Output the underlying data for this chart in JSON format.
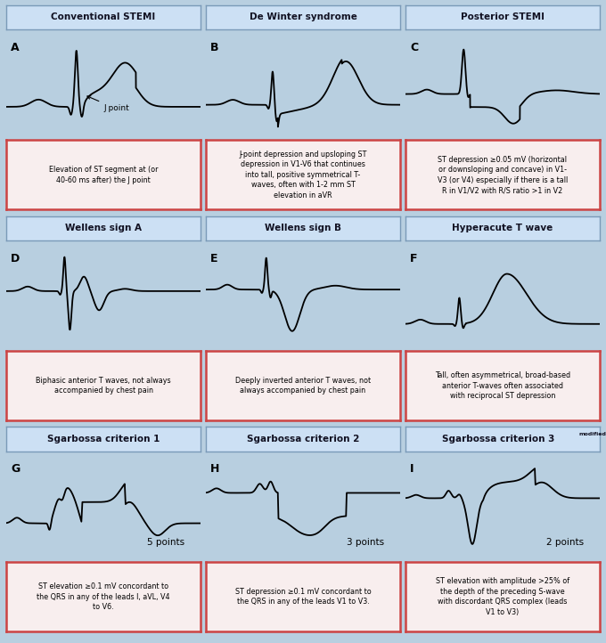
{
  "bg_color": "#b8cfe0",
  "title_bg": "#cce0f4",
  "ecg_bg": "#d8e8f4",
  "text_bg": "#f8eeee",
  "border_ecg": "#cc4444",
  "border_title": "#8899aa",
  "titles": [
    "Conventional STEMI",
    "De Winter syndrome",
    "Posterior STEMI",
    "Wellens sign A",
    "Wellens sign B",
    "Hyperacute T wave",
    "Sgarbossa criterion 1",
    "Sgarbossa criterion 2",
    "Sgarbossa criterion 3"
  ],
  "title_superscripts": [
    "",
    "",
    "",
    "",
    "",
    "",
    "",
    "",
    "modified"
  ],
  "labels": [
    "A",
    "B",
    "C",
    "D",
    "E",
    "F",
    "G",
    "H",
    "I"
  ],
  "descriptions": [
    "Elevation of ST segment at (or\n40-60 ms after) the J point",
    "J-point depression and upsloping ST\ndepression in V1-V6 that continues\ninto tall, positive symmetrical T-\nwaves, often with 1-2 mm ST\nelevation in aVR",
    "ST depression ≥0.05 mV (horizontal\nor downsloping and concave) in V1-\nV3 (or V4) especially if there is a tall\nR in V1/V2 with R/S ratio >1 in V2",
    "Biphasic anterior T waves, not always\naccompanied by chest pain",
    "Deeply inverted anterior T waves, not\nalways accompanied by chest pain",
    "Tall, often asymmetrical, broad-based\nanterior T-waves often associated\nwith reciprocal ST depression",
    "ST elevation ≥0.1 mV concordant to\nthe QRS in any of the leads I, aVL, V4\nto V6.",
    "ST depression ≥0.1 mV concordant to\nthe QRS in any of the leads V1 to V3.",
    "ST elevation with amplitude >25% of\nthe depth of the preceding S-wave\nwith discordant QRS complex (leads\nV1 to V3)"
  ],
  "points": [
    "",
    "",
    "",
    "",
    "",
    "",
    "5 points",
    "3 points",
    "2 points"
  ]
}
